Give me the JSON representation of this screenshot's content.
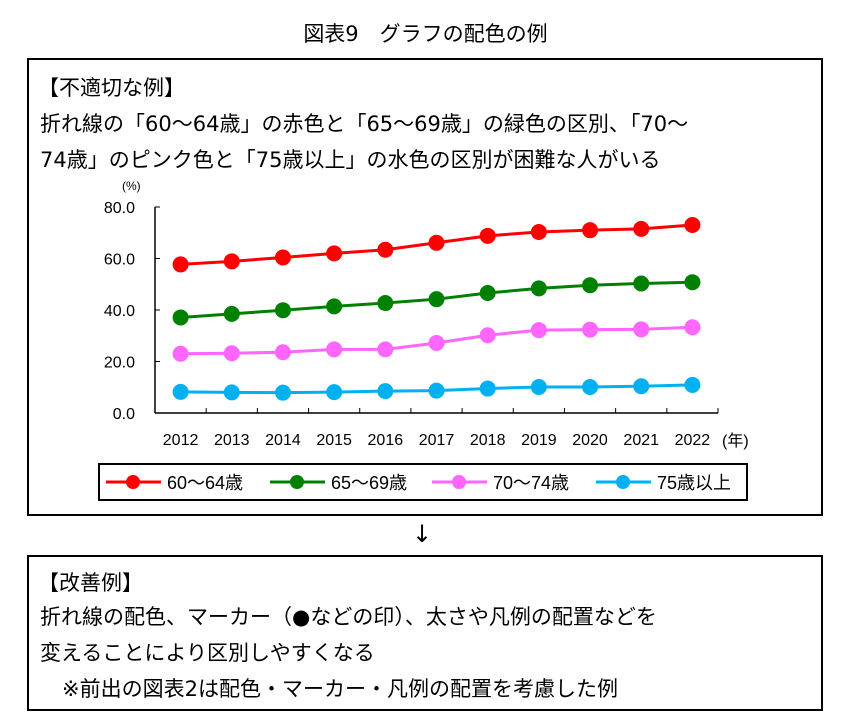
{
  "title": "図表9　グラフの配色の例",
  "box1": {
    "heading": "【不適切な例】",
    "line1": "折れ線の「60～64歳」の赤色と「65～69歳」の緑色の区別、「70～",
    "line2": "74歳」のピンク色と「75歳以上」の水色の区別が困難な人がいる"
  },
  "arrow": "↓",
  "box2": {
    "heading": "【改善例】",
    "line1": "折れ線の配色、マーカー（●などの印）、太さや凡例の配置などを",
    "line2": "変えることにより区別しやすくなる",
    "line3": "※前出の図表2は配色・マーカー・凡例の配置を考慮した例"
  },
  "chart_data": {
    "type": "line",
    "ylabel": "(%)",
    "xlabel": "(年)",
    "ylim": [
      0,
      80
    ],
    "yticks": [
      "0.0",
      "20.0",
      "40.0",
      "60.0",
      "80.0"
    ],
    "categories": [
      "2012",
      "2013",
      "2014",
      "2015",
      "2016",
      "2017",
      "2018",
      "2019",
      "2020",
      "2021",
      "2022"
    ],
    "legend_position": "bottom",
    "series": [
      {
        "name": "60～64歳",
        "color": "#ff0000",
        "values": [
          57.7,
          58.9,
          60.4,
          62.0,
          63.4,
          66.1,
          68.8,
          70.3,
          71.0,
          71.5,
          73.0
        ]
      },
      {
        "name": "65～69歳",
        "color": "#008000",
        "values": [
          37.1,
          38.5,
          39.9,
          41.4,
          42.7,
          44.2,
          46.6,
          48.4,
          49.6,
          50.3,
          50.8
        ]
      },
      {
        "name": "70～74歳",
        "color": "#ff66ff",
        "values": [
          23.0,
          23.2,
          23.6,
          24.7,
          24.7,
          27.2,
          30.2,
          32.2,
          32.4,
          32.5,
          33.3
        ]
      },
      {
        "name": "75歳以上",
        "color": "#00b0f0",
        "values": [
          8.2,
          8.0,
          7.9,
          8.1,
          8.5,
          8.7,
          9.5,
          10.1,
          10.1,
          10.4,
          10.9
        ]
      }
    ]
  }
}
